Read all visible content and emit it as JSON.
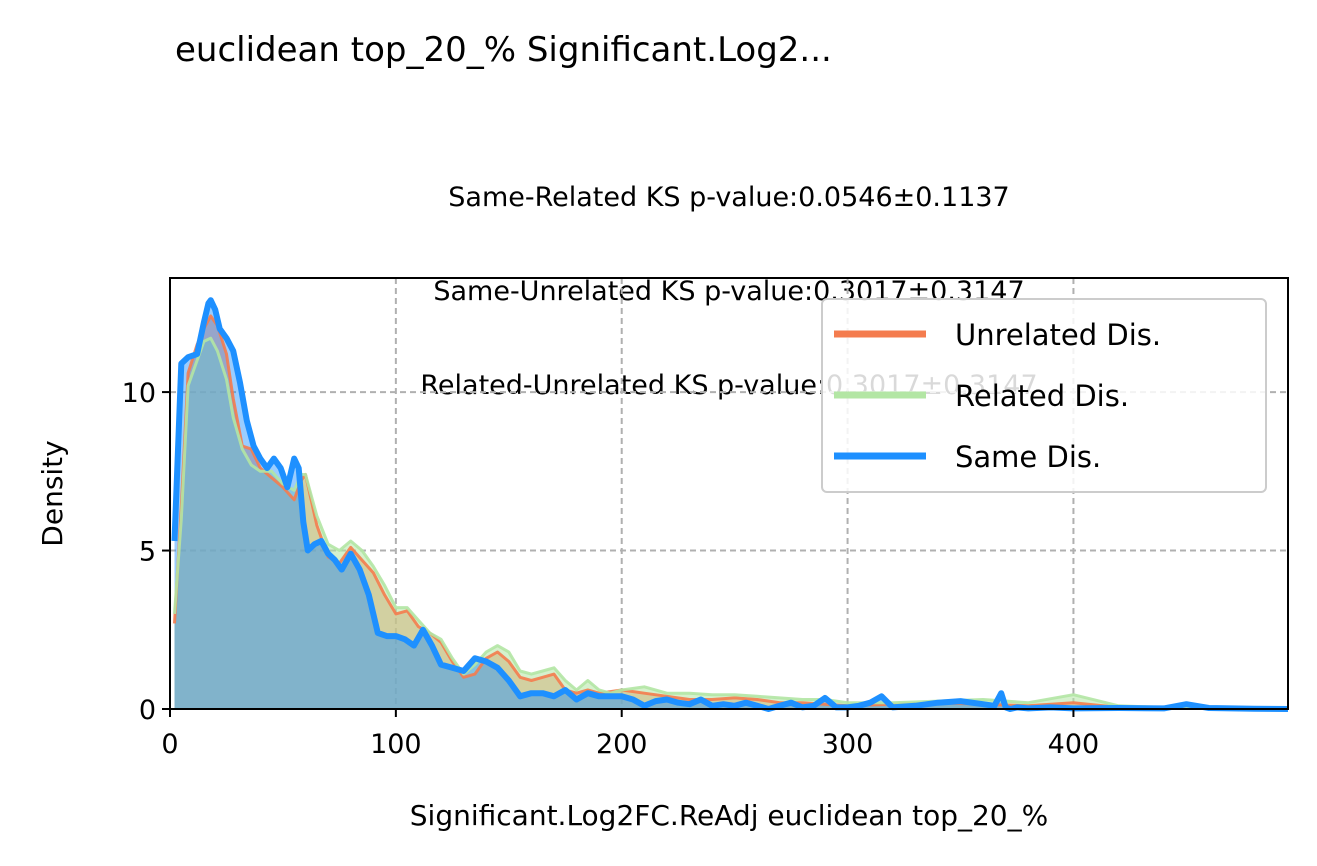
{
  "chart_data": {
    "type": "area",
    "title": "euclidean top_20_% Significant.Log2...",
    "subtitle_lines": [
      "Same-Related KS p-value:0.0546±0.1137",
      "Same-Unrelated KS p-value:0.3017±0.3147",
      "Related-Unrelated KS p-value:0.3017±0.3147"
    ],
    "xlabel": "Significant.Log2FC.ReAdj euclidean top_20_%",
    "ylabel": "Density",
    "xlim": [
      0,
      495
    ],
    "ylim": [
      0,
      13.6
    ],
    "xticks": [
      0,
      100,
      200,
      300,
      400
    ],
    "yticks": [
      0,
      5,
      10
    ],
    "grid": true,
    "legend_position": "upper right",
    "series": [
      {
        "name": "Unrelated Dis.",
        "color": "#F47C4E",
        "x": [
          2,
          5,
          8,
          12,
          15,
          18,
          21,
          25,
          28,
          32,
          36,
          40,
          45,
          50,
          55,
          58,
          60,
          65,
          70,
          75,
          80,
          85,
          90,
          95,
          100,
          105,
          110,
          115,
          120,
          125,
          130,
          135,
          140,
          145,
          150,
          155,
          160,
          165,
          170,
          175,
          180,
          185,
          190,
          200,
          210,
          220,
          230,
          240,
          250,
          260,
          270,
          280,
          290,
          300,
          320,
          340,
          360,
          380,
          400,
          420,
          440,
          460,
          480,
          495
        ],
        "values": [
          2.7,
          6.4,
          10.6,
          11.5,
          12.0,
          12.4,
          12.1,
          11.2,
          9.8,
          8.3,
          8.2,
          7.6,
          7.3,
          7.0,
          6.6,
          7.2,
          7.4,
          5.8,
          4.8,
          4.6,
          5.1,
          4.7,
          4.3,
          3.6,
          3.0,
          3.1,
          2.6,
          2.4,
          2.1,
          1.5,
          1.0,
          1.1,
          1.6,
          1.8,
          1.5,
          1.0,
          0.9,
          1.0,
          1.1,
          0.6,
          0.5,
          0.6,
          0.5,
          0.6,
          0.5,
          0.4,
          0.3,
          0.3,
          0.35,
          0.3,
          0.2,
          0.2,
          0.15,
          0.1,
          0.15,
          0.2,
          0.15,
          0.1,
          0.2,
          0.05,
          0.05,
          0.05,
          0.02,
          0.01
        ]
      },
      {
        "name": "Related Dis.",
        "color": "#B3E6A4",
        "x": [
          2,
          5,
          8,
          12,
          15,
          18,
          21,
          25,
          28,
          32,
          36,
          40,
          45,
          50,
          55,
          58,
          60,
          65,
          70,
          75,
          80,
          85,
          90,
          95,
          100,
          105,
          110,
          115,
          120,
          125,
          130,
          135,
          140,
          145,
          150,
          155,
          160,
          165,
          170,
          175,
          180,
          185,
          190,
          195,
          200,
          210,
          220,
          230,
          240,
          250,
          260,
          270,
          280,
          290,
          300,
          320,
          340,
          360,
          380,
          400,
          420,
          440,
          460,
          480,
          495
        ],
        "values": [
          3.0,
          6.0,
          10.2,
          11.0,
          11.6,
          11.7,
          11.3,
          10.4,
          9.2,
          8.2,
          7.7,
          7.5,
          7.5,
          7.1,
          6.9,
          7.4,
          7.4,
          6.1,
          5.2,
          5.0,
          5.3,
          5.0,
          4.5,
          3.9,
          3.2,
          3.2,
          2.8,
          2.4,
          2.2,
          1.6,
          1.1,
          1.4,
          1.8,
          2.0,
          1.8,
          1.2,
          1.1,
          1.2,
          1.3,
          0.9,
          0.6,
          0.9,
          0.6,
          0.5,
          0.6,
          0.7,
          0.5,
          0.5,
          0.45,
          0.45,
          0.4,
          0.35,
          0.3,
          0.3,
          0.2,
          0.2,
          0.25,
          0.3,
          0.2,
          0.45,
          0.1,
          0.05,
          0.05,
          0.02,
          0.01
        ]
      },
      {
        "name": "Same Dis.",
        "color": "#1E90FF",
        "x": [
          2,
          5,
          8,
          12,
          15,
          17,
          18,
          20,
          22,
          25,
          28,
          31,
          34,
          37,
          40,
          43,
          46,
          49,
          52,
          55,
          57,
          59,
          61,
          64,
          67,
          70,
          73,
          76,
          80,
          84,
          88,
          92,
          96,
          100,
          104,
          108,
          112,
          116,
          120,
          125,
          130,
          135,
          140,
          145,
          150,
          155,
          160,
          165,
          170,
          175,
          180,
          185,
          190,
          195,
          200,
          205,
          210,
          215,
          220,
          225,
          230,
          235,
          240,
          245,
          250,
          255,
          260,
          265,
          270,
          275,
          280,
          285,
          290,
          295,
          300,
          305,
          310,
          315,
          320,
          330,
          340,
          350,
          360,
          365,
          368,
          370,
          372,
          375,
          380,
          390,
          400,
          420,
          440,
          450,
          460,
          480,
          495
        ],
        "values": [
          5.3,
          10.9,
          11.1,
          11.2,
          12.2,
          12.8,
          12.9,
          12.6,
          12.0,
          11.7,
          11.3,
          10.3,
          9.1,
          8.3,
          7.9,
          7.6,
          7.9,
          7.6,
          7.0,
          7.9,
          7.6,
          5.9,
          5.0,
          5.2,
          5.3,
          4.9,
          4.7,
          4.4,
          4.9,
          4.4,
          3.6,
          2.4,
          2.3,
          2.3,
          2.2,
          2.0,
          2.5,
          2.0,
          1.4,
          1.3,
          1.2,
          1.6,
          1.5,
          1.3,
          0.9,
          0.4,
          0.5,
          0.5,
          0.4,
          0.6,
          0.3,
          0.5,
          0.4,
          0.4,
          0.4,
          0.3,
          0.1,
          0.25,
          0.3,
          0.2,
          0.15,
          0.3,
          0.1,
          0.15,
          0.1,
          0.2,
          0.1,
          0.0,
          0.1,
          0.2,
          0.05,
          0.1,
          0.35,
          0.05,
          0.05,
          0.1,
          0.2,
          0.4,
          0.05,
          0.1,
          0.2,
          0.25,
          0.15,
          0.1,
          0.5,
          0.05,
          0.0,
          0.05,
          0.02,
          0.05,
          0.02,
          0.03,
          0.02,
          0.15,
          0.03,
          0.01,
          0.0
        ]
      }
    ]
  }
}
